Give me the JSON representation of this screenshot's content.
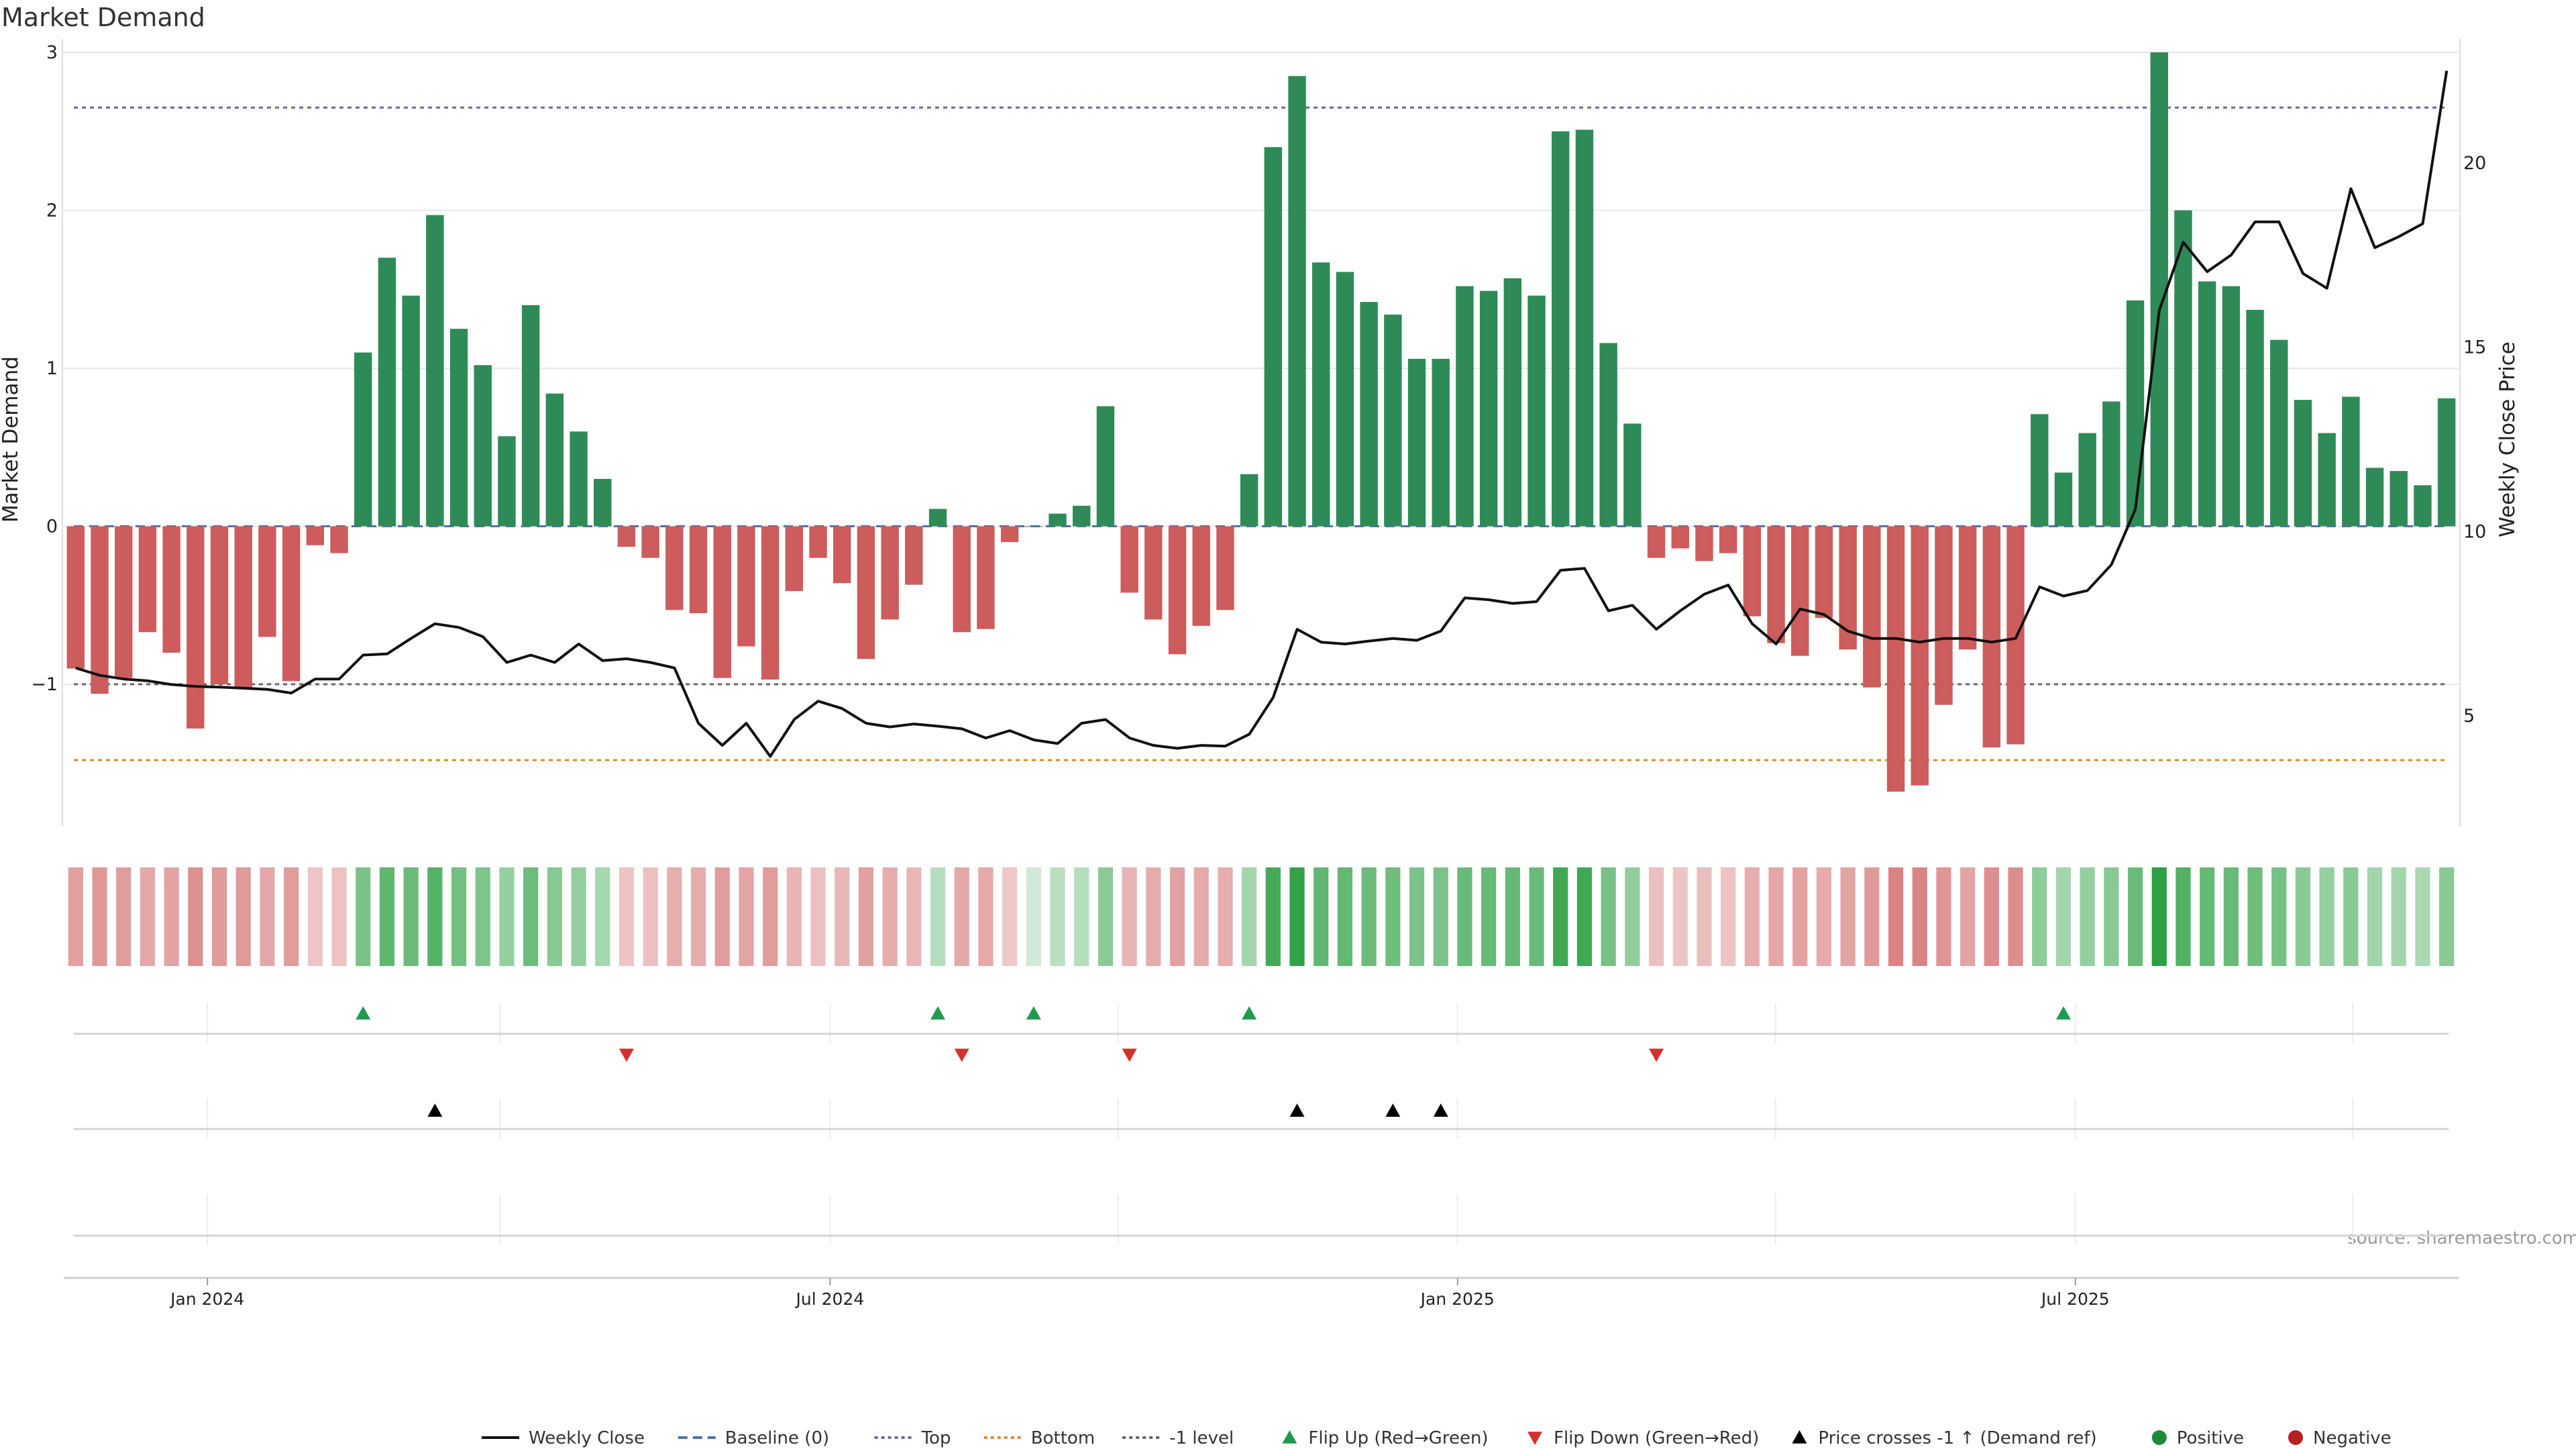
{
  "chart_data": {
    "type": "bar",
    "title": "Market Demand",
    "ylabel_left": "Market Demand",
    "ylabel_right": "Weekly Close Price",
    "source": "source: sharemaestro.com",
    "ylim_left": [
      -1.9,
      3.0
    ],
    "ylim_right": [
      2.0,
      23.0
    ],
    "y_ticks_left": [
      {
        "v": 3,
        "label": "3"
      },
      {
        "v": 2,
        "label": "2"
      },
      {
        "v": 1,
        "label": "1"
      },
      {
        "v": 0,
        "label": "0"
      },
      {
        "v": -1,
        "label": "−1"
      }
    ],
    "y_ticks_right": [
      {
        "v": 20,
        "label": "20"
      },
      {
        "v": 15,
        "label": "15"
      },
      {
        "v": 10,
        "label": "10"
      },
      {
        "v": 5,
        "label": "5"
      }
    ],
    "x_ticks": [
      {
        "i": 5.5,
        "label": "Jan 2024"
      },
      {
        "i": 31.5,
        "label": "Jul 2024"
      },
      {
        "i": 57.7,
        "label": "Jan 2025"
      },
      {
        "i": 83.5,
        "label": "Jul 2025"
      }
    ],
    "reference_lines": {
      "top": 2.65,
      "bottom": -1.48,
      "minus_one": -1.0,
      "baseline": 0
    },
    "demand": [
      -0.9,
      -1.06,
      -0.96,
      -0.67,
      -0.8,
      -1.28,
      -1.0,
      -1.03,
      -0.7,
      -0.98,
      -0.12,
      -0.17,
      1.1,
      1.7,
      1.46,
      1.97,
      1.25,
      1.02,
      0.57,
      1.4,
      0.84,
      0.6,
      0.3,
      -0.13,
      -0.2,
      -0.53,
      -0.55,
      -0.96,
      -0.76,
      -0.97,
      -0.41,
      -0.2,
      -0.36,
      -0.84,
      -0.59,
      -0.37,
      0.11,
      -0.67,
      -0.65,
      -0.1,
      0.0,
      0.08,
      0.13,
      0.76,
      -0.42,
      -0.59,
      -0.81,
      -0.63,
      -0.53,
      0.33,
      2.4,
      2.85,
      1.67,
      1.61,
      1.42,
      1.34,
      1.06,
      1.06,
      1.52,
      1.49,
      1.57,
      1.46,
      2.5,
      2.51,
      1.16,
      0.65,
      -0.2,
      -0.14,
      -0.22,
      -0.17,
      -0.57,
      -0.74,
      -0.82,
      -0.58,
      -0.78,
      -1.02,
      -1.68,
      -1.64,
      -1.13,
      -0.78,
      -1.4,
      -1.38,
      0.71,
      0.34,
      0.59,
      0.79,
      1.43,
      3.0,
      2.0,
      1.55,
      1.52,
      1.37,
      1.18,
      0.8,
      0.59,
      0.82,
      0.37,
      0.35,
      0.26,
      0.81
    ],
    "weekly_close": [
      6.3,
      6.1,
      6.0,
      5.95,
      5.85,
      5.8,
      5.78,
      5.75,
      5.72,
      5.62,
      6.0,
      6.0,
      6.65,
      6.68,
      7.1,
      7.5,
      7.4,
      7.15,
      6.45,
      6.65,
      6.45,
      6.95,
      6.5,
      6.55,
      6.45,
      6.3,
      4.8,
      4.2,
      4.8,
      3.9,
      4.9,
      5.4,
      5.2,
      4.8,
      4.7,
      4.78,
      4.72,
      4.65,
      4.4,
      4.6,
      4.35,
      4.25,
      4.8,
      4.9,
      4.4,
      4.2,
      4.12,
      4.2,
      4.18,
      4.5,
      5.5,
      7.35,
      7.0,
      6.95,
      7.03,
      7.1,
      7.05,
      7.3,
      8.2,
      8.15,
      8.05,
      8.1,
      8.95,
      9.0,
      7.85,
      8.0,
      7.35,
      7.85,
      8.3,
      8.55,
      7.5,
      6.95,
      7.9,
      7.75,
      7.3,
      7.1,
      7.1,
      7.0,
      7.1,
      7.1,
      7.0,
      7.1,
      8.5,
      8.25,
      8.4,
      9.1,
      10.6,
      16.0,
      17.85,
      17.05,
      17.5,
      18.4,
      18.4,
      17.0,
      16.6,
      19.3,
      17.7,
      18.0,
      18.35,
      22.5
    ],
    "flip_up_idx": [
      12,
      36,
      40,
      49,
      83
    ],
    "flip_down_idx": [
      23,
      37,
      44,
      66
    ],
    "price_cross_idx": [
      15,
      51,
      55,
      57
    ],
    "legend": [
      {
        "label": "Weekly Close",
        "kind": "solid",
        "color": "#111111"
      },
      {
        "label": "Baseline (0)",
        "kind": "dash",
        "color": "#4c72b0"
      },
      {
        "label": "Top",
        "kind": "dot",
        "color": "#6b6b99"
      },
      {
        "label": "Bottom",
        "kind": "dot",
        "color": "#e08a2c"
      },
      {
        "label": "-1 level",
        "kind": "dot",
        "color": "#666666"
      },
      {
        "label": "Flip Up (Red→Green)",
        "kind": "tri-up",
        "color": "#1e9b4f"
      },
      {
        "label": "Flip Down (Green→Red)",
        "kind": "tri-down",
        "color": "#d0312d"
      },
      {
        "label": "Price crosses -1 ↑ (Demand ref)",
        "kind": "tri-up",
        "color": "#000000"
      },
      {
        "label": "Positive",
        "kind": "dot-marker",
        "color": "#1e8a3a"
      },
      {
        "label": "Negative",
        "kind": "dot-marker",
        "color": "#b22222"
      }
    ],
    "colors": {
      "positive": "#2e8b57",
      "negative": "#cd5c5c",
      "price_line": "#111111",
      "grid": "#e8e8e8",
      "axis_text": "#222222",
      "source_text": "#999999"
    }
  }
}
